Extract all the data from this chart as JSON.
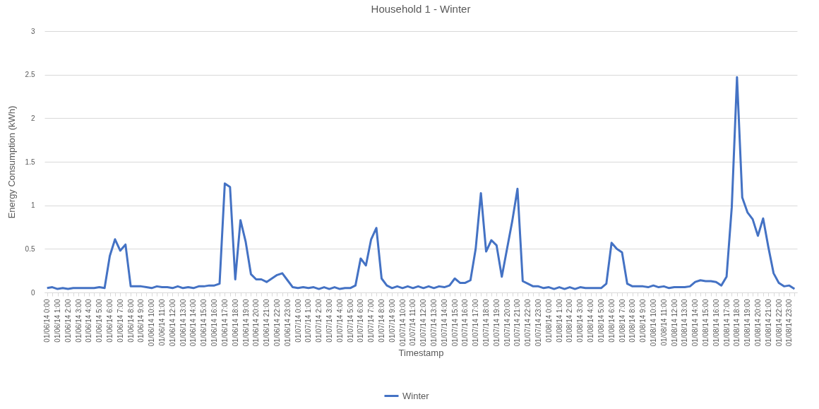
{
  "chart_data": {
    "type": "line",
    "title": "Household 1 - Winter",
    "xlabel": "Timestamp",
    "ylabel": "Energy Consumption (kWh)",
    "categories": [
      "01/06/14 0:00",
      null,
      "01/06/14 1:00",
      null,
      "01/06/14 2:00",
      null,
      "01/06/14 3:00",
      null,
      "01/06/14 4:00",
      null,
      "01/06/14 5:00",
      null,
      "01/06/14 6:00",
      null,
      "01/06/14 7:00",
      null,
      "01/06/14 8:00",
      null,
      "01/06/14 9:00",
      null,
      "01/06/14 10:00",
      null,
      "01/06/14 11:00",
      null,
      "01/06/14 12:00",
      null,
      "01/06/14 13:00",
      null,
      "01/06/14 14:00",
      null,
      "01/06/14 15:00",
      null,
      "01/06/14 16:00",
      null,
      "01/06/14 17:00",
      null,
      "01/06/14 18:00",
      null,
      "01/06/14 19:00",
      null,
      "01/06/14 20:00",
      null,
      "01/06/14 21:00",
      null,
      "01/06/14 22:00",
      null,
      "01/06/14 23:00",
      null,
      "01/07/14 0:00",
      null,
      "01/07/14 1:00",
      null,
      "01/07/14 2:00",
      null,
      "01/07/14 3:00",
      null,
      "01/07/14 4:00",
      null,
      "01/07/14 5:00",
      null,
      "01/07/14 6:00",
      null,
      "01/07/14 7:00",
      null,
      "01/07/14 8:00",
      null,
      "01/07/14 9:00",
      null,
      "01/07/14 10:00",
      null,
      "01/07/14 11:00",
      null,
      "01/07/14 12:00",
      null,
      "01/07/14 13:00",
      null,
      "01/07/14 14:00",
      null,
      "01/07/14 15:00",
      null,
      "01/07/14 16:00",
      null,
      "01/07/14 17:00",
      null,
      "01/07/14 18:00",
      null,
      "01/07/14 19:00",
      null,
      "01/07/14 20:00",
      null,
      "01/07/14 21:00",
      null,
      "01/07/14 22:00",
      null,
      "01/07/14 23:00",
      null,
      "01/08/14 0:00",
      null,
      "01/08/14 1:00",
      null,
      "01/08/14 2:00",
      null,
      "01/08/14 3:00",
      null,
      "01/08/14 4:00",
      null,
      "01/08/14 5:00",
      null,
      "01/08/14 6:00",
      null,
      "01/08/14 7:00",
      null,
      "01/08/14 8:00",
      null,
      "01/08/14 9:00",
      null,
      "01/08/14 10:00",
      null,
      "01/08/14 11:00",
      null,
      "01/08/14 12:00",
      null,
      "01/08/14 13:00",
      null,
      "01/08/14 14:00",
      null,
      "01/08/14 15:00",
      null,
      "01/08/14 16:00",
      null,
      "01/08/14 17:00",
      null,
      "01/08/14 18:00",
      null,
      "01/08/14 19:00",
      null,
      "01/08/14 20:00",
      null,
      "01/08/14 21:00",
      null,
      "01/08/14 22:00",
      null,
      "01/08/14 23:00",
      null
    ],
    "series": [
      {
        "name": "Winter",
        "color": "#4472c4",
        "values": [
          0.05,
          0.06,
          0.04,
          0.05,
          0.04,
          0.05,
          0.05,
          0.05,
          0.05,
          0.05,
          0.06,
          0.05,
          0.42,
          0.61,
          0.48,
          0.55,
          0.07,
          0.07,
          0.07,
          0.06,
          0.05,
          0.07,
          0.06,
          0.06,
          0.05,
          0.07,
          0.05,
          0.06,
          0.05,
          0.07,
          0.07,
          0.08,
          0.08,
          0.1,
          1.25,
          1.21,
          0.15,
          0.83,
          0.58,
          0.21,
          0.15,
          0.15,
          0.12,
          0.16,
          0.2,
          0.22,
          0.14,
          0.06,
          0.05,
          0.06,
          0.05,
          0.06,
          0.04,
          0.06,
          0.04,
          0.06,
          0.04,
          0.05,
          0.05,
          0.08,
          0.39,
          0.31,
          0.61,
          0.74,
          0.16,
          0.08,
          0.05,
          0.07,
          0.05,
          0.07,
          0.05,
          0.07,
          0.05,
          0.07,
          0.05,
          0.07,
          0.06,
          0.08,
          0.16,
          0.11,
          0.11,
          0.14,
          0.5,
          1.14,
          0.47,
          0.6,
          0.54,
          0.18,
          0.5,
          0.82,
          1.19,
          0.13,
          0.1,
          0.07,
          0.07,
          0.05,
          0.06,
          0.04,
          0.06,
          0.04,
          0.06,
          0.04,
          0.06,
          0.05,
          0.05,
          0.05,
          0.05,
          0.1,
          0.57,
          0.5,
          0.46,
          0.1,
          0.07,
          0.07,
          0.07,
          0.06,
          0.08,
          0.06,
          0.07,
          0.05,
          0.06,
          0.06,
          0.06,
          0.07,
          0.12,
          0.14,
          0.13,
          0.13,
          0.12,
          0.08,
          0.18,
          0.98,
          2.47,
          1.09,
          0.92,
          0.84,
          0.65,
          0.85,
          0.52,
          0.22,
          0.11,
          0.07,
          0.08,
          0.04
        ]
      }
    ],
    "ylim": [
      0,
      3
    ],
    "yticks": [
      0,
      0.5,
      1,
      1.5,
      2,
      2.5,
      3
    ],
    "grid": "y",
    "legend": "bottom",
    "marker": "none",
    "line_style": "solid"
  }
}
